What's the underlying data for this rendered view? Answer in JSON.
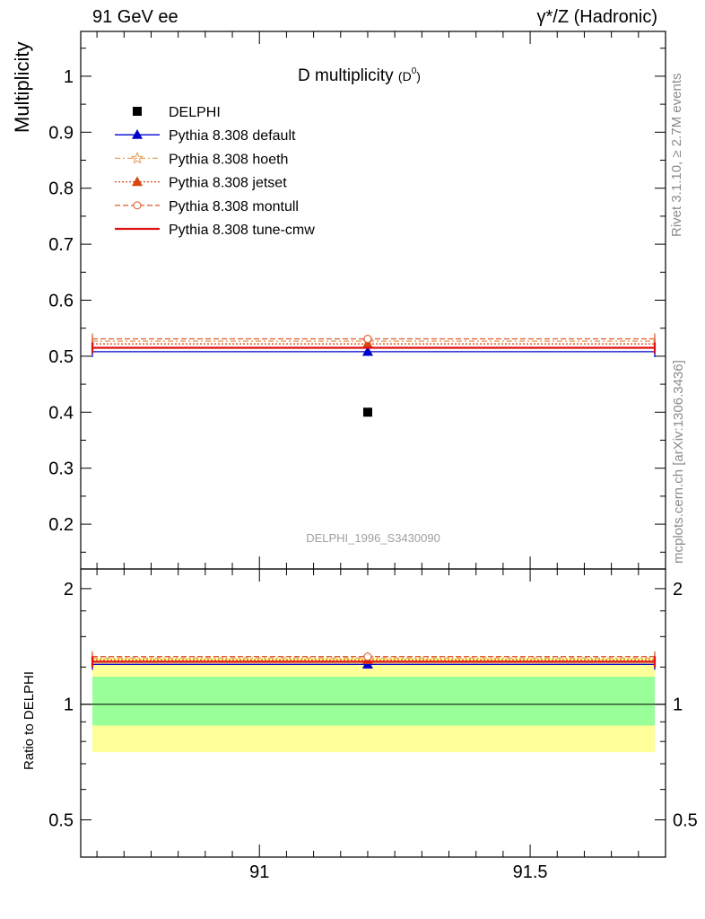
{
  "header": {
    "left": "91 GeV ee",
    "right": "γ*/Z (Hadronic)"
  },
  "side_text": {
    "top": "Rivet 3.1.10, ≥ 2.7M events",
    "bottom": "mcplots.cern.ch [arXiv:1306.3436]"
  },
  "chart_data": [
    {
      "type": "scatter",
      "panel": "main",
      "title": "D multiplicity",
      "title_sub": "(D",
      "title_sup": "0",
      "title_close": ")",
      "ylabel": "Multiplicity",
      "xlim": [
        90.67,
        91.75
      ],
      "ylim": [
        0.12,
        1.08
      ],
      "yticks": [
        0.2,
        0.3,
        0.4,
        0.5,
        0.6,
        0.7,
        0.8,
        0.9,
        1
      ],
      "ytick_labels": [
        "0.2",
        "0.3",
        "0.4",
        "0.5",
        "0.6",
        "0.7",
        "0.8",
        "0.9",
        "1"
      ],
      "watermark": "DELPHI_1996_S3430090",
      "legend_position": "top-left",
      "series": [
        {
          "name": "DELPHI",
          "kind": "data",
          "color": "#000000",
          "marker": "square",
          "x": 91.2,
          "y": 0.4
        },
        {
          "name": "Pythia 8.308 default",
          "kind": "mc",
          "color": "#0000cc",
          "dash": "",
          "marker": "triangle",
          "fill": true,
          "y": 0.508
        },
        {
          "name": "Pythia 8.308 hoeth",
          "kind": "mc",
          "color": "#e8a060",
          "dash": "6,3,2,3",
          "marker": "star",
          "fill": false,
          "y": 0.527
        },
        {
          "name": "Pythia 8.308 jetset",
          "kind": "mc",
          "color": "#d84810",
          "dash": "2,2",
          "marker": "triangle",
          "fill": true,
          "y": 0.522
        },
        {
          "name": "Pythia 8.308 montull",
          "kind": "mc",
          "color": "#e06840",
          "dash": "6,3",
          "marker": "circle",
          "fill": false,
          "y": 0.531
        },
        {
          "name": "Pythia 8.308 tune-cmw",
          "kind": "mc",
          "color": "#e01010",
          "dash": "",
          "marker": "none",
          "fill": false,
          "width": 2.2,
          "y": 0.515
        }
      ]
    },
    {
      "type": "scatter",
      "panel": "ratio",
      "ylabel": "Ratio to DELPHI",
      "xlim": [
        90.67,
        91.75
      ],
      "ylim": [
        0.4,
        2.25
      ],
      "scale": "log",
      "yticks": [
        0.5,
        1,
        2
      ],
      "ytick_labels": [
        "0.5",
        "1",
        "2"
      ],
      "xticks": [
        91,
        91.5
      ],
      "xtick_labels": [
        "91",
        "91.5"
      ],
      "bands": [
        {
          "label": "total uncertainty",
          "color": "#ffff99",
          "low": 0.75,
          "high": 1.32
        },
        {
          "label": "statistical uncertainty",
          "color": "#99ff99",
          "low": 0.88,
          "high": 1.18
        }
      ],
      "ratios": [
        1.27,
        1.32,
        1.305,
        1.33,
        1.29
      ]
    }
  ]
}
